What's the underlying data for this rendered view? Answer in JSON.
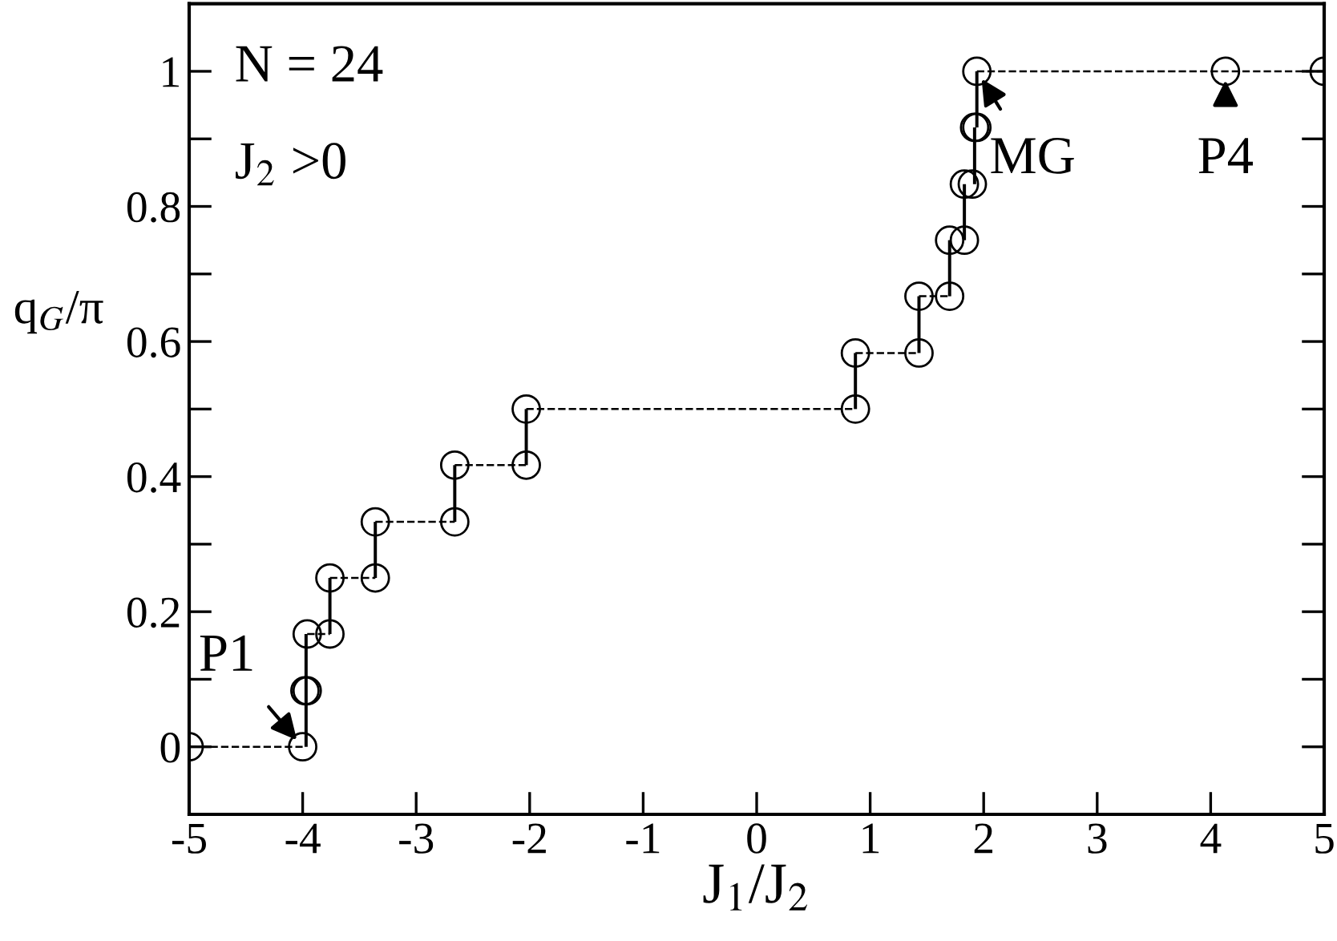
{
  "chart_data": {
    "type": "scatter",
    "xlabel": "J$_{1}$/J$_{2}$",
    "ylabel": "q$_{G}$/π",
    "xlim": [
      -5,
      5
    ],
    "xticks": [
      -5,
      -4,
      -3,
      -2,
      -1,
      0,
      1,
      2,
      3,
      4,
      5
    ],
    "ylim": [
      -0.1,
      1.1
    ],
    "yticks": [
      0,
      {
        "value": 0.1,
        "label": null
      },
      0.2,
      {
        "value": 0.3,
        "label": null
      },
      0.4,
      {
        "value": 0.5,
        "label": null
      },
      0.6,
      {
        "value": 0.7,
        "label": null
      },
      0.8,
      {
        "value": 0.9,
        "label": null
      },
      1
    ],
    "grid": false,
    "legend": false,
    "series": [
      {
        "type": "line",
        "line_style": "dashed",
        "marker": "none",
        "color": "#000000",
        "x": [
          -5,
          -4,
          null,
          -3.96,
          -3.76,
          null,
          -3.76,
          -3.36,
          null,
          -3.36,
          -2.66,
          null,
          -2.66,
          -2.03,
          null,
          -2.03,
          0.87,
          null,
          0.87,
          1.43,
          null,
          1.43,
          1.7,
          null,
          1.94,
          5
        ],
        "values": [
          0,
          0,
          null,
          0.167,
          0.167,
          null,
          0.25,
          0.25,
          null,
          0.333,
          0.333,
          null,
          0.417,
          0.417,
          null,
          0.5,
          0.5,
          null,
          0.583,
          0.583,
          null,
          0.667,
          0.667,
          null,
          1,
          1
        ]
      },
      {
        "type": "bar",
        "color": "#000000",
        "x": [
          -3.97,
          -3.76,
          -3.36,
          -2.66,
          -2.03,
          0.87,
          1.43,
          1.7,
          1.83,
          1.92,
          1.94
        ],
        "base": [
          0,
          0.167,
          0.25,
          0.333,
          0.417,
          0.5,
          0.583,
          0.667,
          0.75,
          0.833,
          0.917
        ],
        "values": [
          0.167,
          0.083,
          0.083,
          0.084,
          0.083,
          0.083,
          0.084,
          0.083,
          0.083,
          0.084,
          0.083
        ]
      },
      {
        "marker": "circle",
        "color": "#000000",
        "x": [
          -5,
          -4,
          -3.98,
          -3.96,
          -3.96,
          -3.76,
          -3.76,
          -3.36,
          -3.36,
          -2.66,
          -2.66,
          -2.03,
          -2.03,
          0.87,
          0.87,
          1.43,
          1.43,
          1.7,
          1.7,
          1.83,
          1.83,
          1.9,
          1.92,
          1.94,
          1.94,
          4.13,
          5
        ],
        "values": [
          0,
          0,
          0.083,
          0.083,
          0.167,
          0.167,
          0.25,
          0.25,
          0.333,
          0.333,
          0.417,
          0.417,
          0.5,
          0.5,
          0.583,
          0.583,
          0.667,
          0.667,
          0.75,
          0.75,
          0.833,
          0.833,
          0.917,
          0.917,
          1,
          1,
          1
        ]
      }
    ],
    "annotations": [
      "N = 24",
      "J$_{2}$ >0",
      {
        "text": "P1",
        "x": -4,
        "y": 0
      },
      {
        "text": "MG",
        "x": 1.94,
        "y": 1
      },
      {
        "text": "P4",
        "x": 4.13,
        "y": 1
      }
    ]
  }
}
